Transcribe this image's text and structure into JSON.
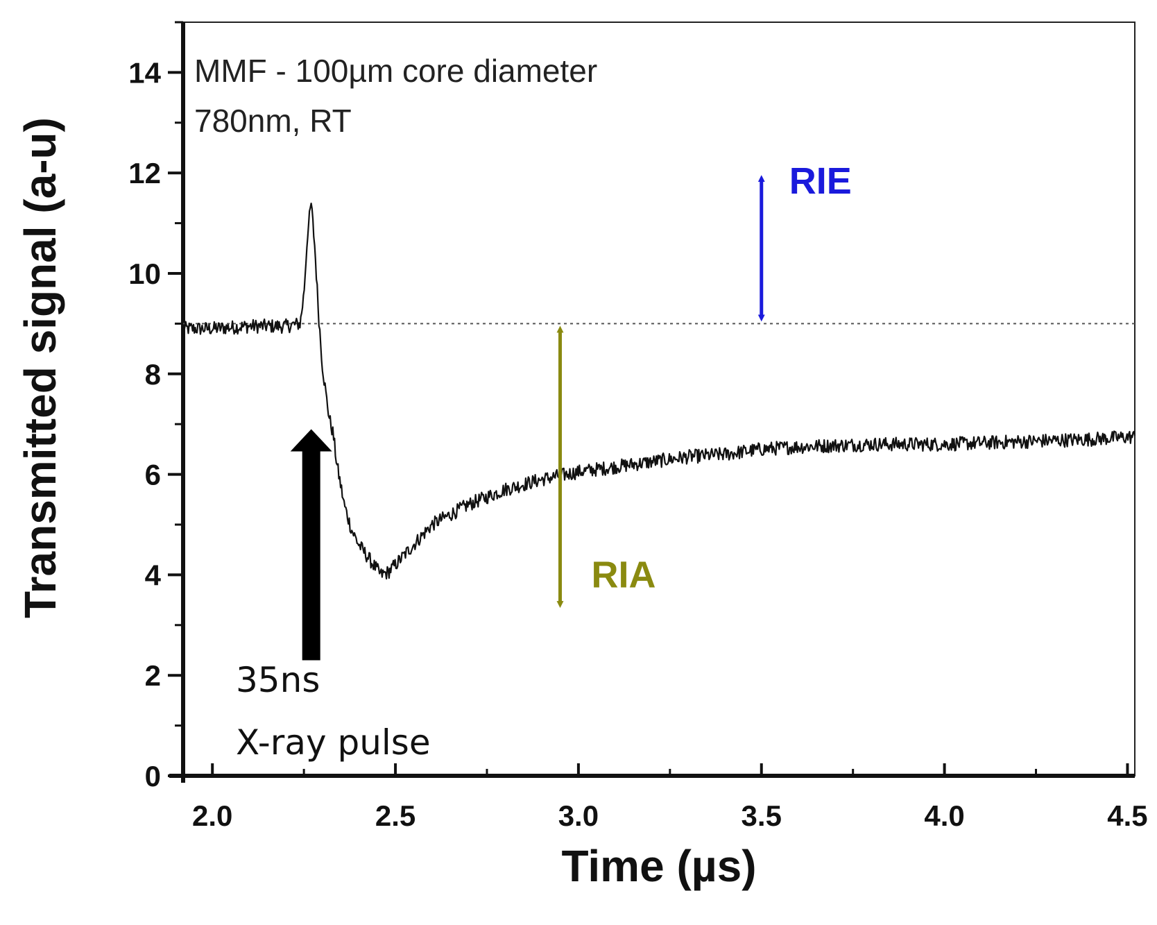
{
  "chart_data": {
    "type": "line",
    "xlabel": "Time (µs)",
    "ylabel": "Transmitted signal (a-u)",
    "xlim": [
      1.92,
      4.52
    ],
    "ylim": [
      0,
      15
    ],
    "x_ticks": [
      2.0,
      2.5,
      3.0,
      3.5,
      4.0,
      4.5
    ],
    "x_tick_labels": [
      "2.0",
      "2.5",
      "3.0",
      "3.5",
      "4.0",
      "4.5"
    ],
    "y_ticks": [
      0,
      2,
      4,
      6,
      8,
      10,
      12,
      14
    ],
    "y_tick_labels": [
      "0",
      "2",
      "4",
      "6",
      "8",
      "10",
      "12",
      "14"
    ],
    "grid": false,
    "series": [
      {
        "name": "Transmitted signal",
        "color": "#111111",
        "x": [
          1.92,
          2.0,
          2.1,
          2.2,
          2.24,
          2.25,
          2.26,
          2.27,
          2.28,
          2.29,
          2.3,
          2.31,
          2.32,
          2.33,
          2.34,
          2.36,
          2.38,
          2.4,
          2.42,
          2.44,
          2.46,
          2.48,
          2.5,
          2.55,
          2.6,
          2.7,
          2.8,
          2.9,
          3.0,
          3.1,
          3.2,
          3.3,
          3.4,
          3.5,
          3.6,
          3.8,
          4.0,
          4.2,
          4.4,
          4.52
        ],
        "values": [
          8.9,
          8.9,
          8.95,
          8.95,
          9.0,
          9.6,
          10.8,
          11.4,
          10.5,
          9.2,
          8.2,
          7.6,
          7.1,
          6.8,
          6.2,
          5.4,
          4.9,
          4.6,
          4.4,
          4.2,
          4.0,
          4.05,
          4.2,
          4.6,
          5.0,
          5.4,
          5.7,
          5.9,
          6.05,
          6.15,
          6.25,
          6.35,
          6.4,
          6.5,
          6.55,
          6.6,
          6.6,
          6.65,
          6.7,
          6.75
        ]
      }
    ],
    "reference_line": {
      "y": 9.0,
      "style": "dotted"
    },
    "annotations": {
      "info_line1": "MMF - 100µm core diameter",
      "info_line2": "780nm, RT",
      "pulse_line1": "35ns",
      "pulse_line2": "X-ray pulse",
      "pulse_arrow": {
        "x": 2.27,
        "y_from": 2.3,
        "y_to": 6.9
      },
      "rie": {
        "label": "RIE",
        "x": 3.5,
        "y_from": 9.0,
        "y_to": 12.0,
        "color": "#1a1adc"
      },
      "ria": {
        "label": "RIA",
        "x": 2.95,
        "y_from": 3.3,
        "y_to": 9.0,
        "color": "#8a8a10"
      }
    }
  }
}
